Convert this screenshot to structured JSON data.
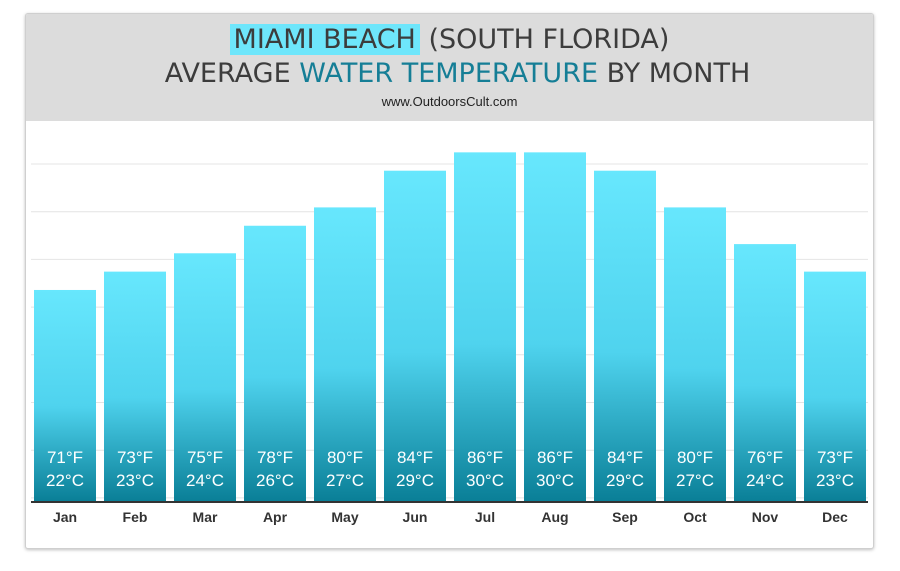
{
  "header": {
    "title_line1_highlight": "MIAMI BEACH",
    "title_line1_rest": "(SOUTH FLORIDA)",
    "title_line2_pre": "AVERAGE ",
    "title_line2_accent": "WATER TEMPERATURE",
    "title_line2_post": " BY MONTH",
    "website": "www.OutdoorsCult.com"
  },
  "colors": {
    "highlight": "#6ee6fb",
    "accent_text": "#157e96",
    "bar_top": "#67e7fd",
    "bar_bottom": "#0a7f97",
    "header_bg": "#dcdcdc"
  },
  "chart_data": {
    "type": "bar",
    "categories": [
      "Jan",
      "Feb",
      "Mar",
      "Apr",
      "May",
      "Jun",
      "Jul",
      "Aug",
      "Sep",
      "Oct",
      "Nov",
      "Dec"
    ],
    "values": [
      71,
      73,
      75,
      78,
      80,
      84,
      86,
      86,
      84,
      80,
      76,
      73
    ],
    "labels_f": [
      "71°F",
      "73°F",
      "75°F",
      "78°F",
      "80°F",
      "84°F",
      "86°F",
      "86°F",
      "84°F",
      "80°F",
      "76°F",
      "73°F"
    ],
    "labels_c": [
      "22°C",
      "23°C",
      "24°C",
      "26°C",
      "27°C",
      "29°C",
      "30°C",
      "30°C",
      "29°C",
      "27°C",
      "24°C",
      "23°C"
    ],
    "title": "MIAMI BEACH (SOUTH FLORIDA) AVERAGE WATER TEMPERATURE BY MONTH",
    "xlabel": "",
    "ylabel": "",
    "ylim": [
      48,
      88
    ],
    "grid": true,
    "legend": "none"
  }
}
